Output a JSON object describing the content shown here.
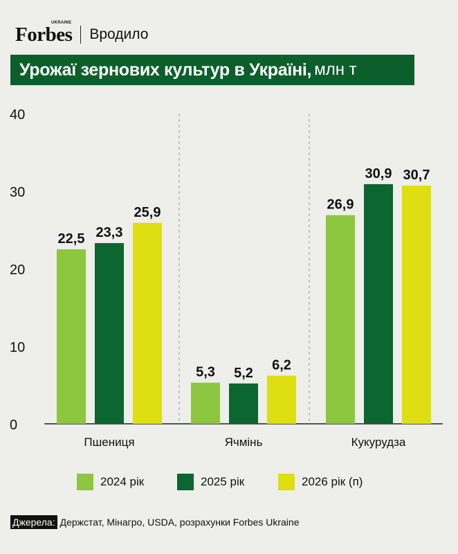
{
  "brand": {
    "logo": "Forbes",
    "logo_sub": "UKRAINE",
    "section": "Вродило"
  },
  "header": {
    "title": "Урожаї зернових культур в Україні,",
    "unit": "млн т"
  },
  "colors": {
    "background": "#eeeeea",
    "title_bg": "#0c5f2b",
    "series_2024": "#8dc63f",
    "series_2025": "#0b6630",
    "series_2026": "#dede10"
  },
  "chart_data": {
    "type": "bar",
    "categories": [
      "Пшениця",
      "Ячмінь",
      "Кукурудза"
    ],
    "series": [
      {
        "name": "2024 рік",
        "values": [
          22.5,
          5.3,
          26.9
        ],
        "labels": [
          "22,5",
          "5,3",
          "26,9"
        ]
      },
      {
        "name": "2025 рік",
        "values": [
          23.3,
          5.2,
          30.9
        ],
        "labels": [
          "23,3",
          "5,2",
          "30,9"
        ]
      },
      {
        "name": "2026 рік (п)",
        "values": [
          25.9,
          6.2,
          30.7
        ],
        "labels": [
          "25,9",
          "6,2",
          "30,7"
        ]
      }
    ],
    "yticks": [
      "0",
      "10",
      "20",
      "30",
      "40"
    ],
    "ylim": [
      0,
      40
    ],
    "grid": false,
    "legend_position": "bottom"
  },
  "source": {
    "label": "Джерела:",
    "text": "Держстат, Мінагро, USDA, розрахунки Forbes Ukraine"
  }
}
